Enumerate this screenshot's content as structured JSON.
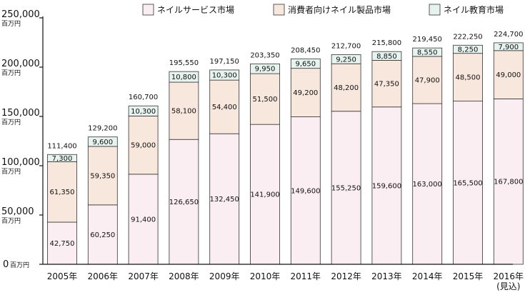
{
  "chart_data": {
    "type": "bar",
    "stacked": true,
    "title": "",
    "xlabel": "",
    "ylabel": "",
    "ylim": [
      0,
      250000
    ],
    "y_ticks": [
      {
        "value": 0,
        "label": "0",
        "unit": "百万円"
      },
      {
        "value": 50000,
        "label": "50,000",
        "unit": "百万円"
      },
      {
        "value": 100000,
        "label": "100,000",
        "unit": "百万円"
      },
      {
        "value": 150000,
        "label": "150,000",
        "unit": "百万円"
      },
      {
        "value": 200000,
        "label": "200,000",
        "unit": "百万円"
      },
      {
        "value": 250000,
        "label": "250,000",
        "unit": "百万円"
      }
    ],
    "grid": false,
    "legend_position": "top-right",
    "categories": [
      "2005年",
      "2006年",
      "2007年",
      "2008年",
      "2009年",
      "2010年",
      "2011年",
      "2012年",
      "2013年",
      "2014年",
      "2015年",
      "2016年"
    ],
    "category_notes": [
      "",
      "",
      "",
      "",
      "",
      "",
      "",
      "",
      "",
      "",
      "",
      "(見込)"
    ],
    "series": [
      {
        "name": "ネイルサービス市場",
        "color": "#fbeef3",
        "values": [
          42750,
          60250,
          91400,
          126650,
          132450,
          141900,
          149600,
          155250,
          159600,
          163000,
          165500,
          167800
        ],
        "labels": [
          "42,750",
          "60,250",
          "91,400",
          "126,650",
          "132,450",
          "141,900",
          "149,600",
          "155,250",
          "159,600",
          "163,000",
          "165,500",
          "167,800"
        ]
      },
      {
        "name": "消費者向けネイル製品市場",
        "color": "#f8e7dd",
        "values": [
          61350,
          59350,
          59000,
          58100,
          54400,
          51500,
          49200,
          48200,
          47350,
          47900,
          48500,
          49000
        ],
        "labels": [
          "61,350",
          "59,350",
          "59,000",
          "58,100",
          "54,400",
          "51,500",
          "49,200",
          "48,200",
          "47,350",
          "47,900",
          "48,500",
          "49,000"
        ]
      },
      {
        "name": "ネイル教育市場",
        "color": "#e6f3ef",
        "values": [
          7300,
          9600,
          10300,
          10800,
          10300,
          9950,
          9650,
          9250,
          8850,
          8550,
          8250,
          7900
        ],
        "labels": [
          "7,300",
          "9,600",
          "10,300",
          "10,800",
          "10,300",
          "9,950",
          "9,650",
          "9,250",
          "8,850",
          "8,550",
          "8,250",
          "7,900"
        ]
      }
    ],
    "totals": [
      111400,
      129200,
      160700,
      195550,
      197150,
      203350,
      208450,
      212700,
      215800,
      219450,
      222250,
      224700
    ],
    "total_labels": [
      "111,400",
      "129,200",
      "160,700",
      "195,550",
      "197,150",
      "203,350",
      "208,450",
      "212,700",
      "215,800",
      "219,450",
      "222,250",
      "224,700"
    ]
  }
}
